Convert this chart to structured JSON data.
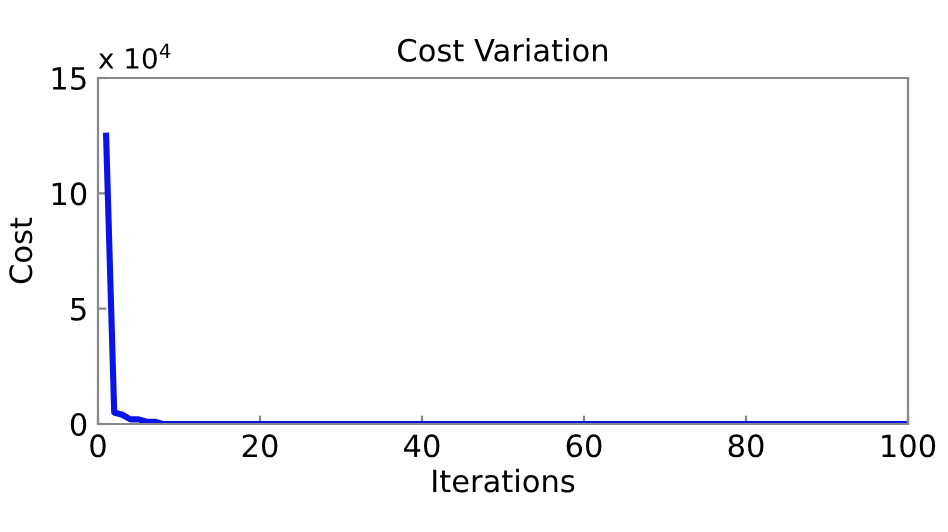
{
  "chart_data": {
    "type": "line",
    "title": "Cost Variation",
    "xlabel": "Iterations",
    "ylabel": "Cost",
    "x": [
      1,
      2,
      3,
      4,
      5,
      6,
      7,
      8,
      10,
      20,
      40,
      60,
      80,
      100
    ],
    "series": [
      {
        "color": "#0a14e6",
        "values": [
          12.5,
          0.5,
          0.4,
          0.2,
          0.2,
          0.1,
          0.1,
          0,
          0,
          0,
          0,
          0,
          0,
          0
        ]
      }
    ],
    "xlim": [
      0,
      100
    ],
    "xticks": [
      0,
      20,
      40,
      60,
      80,
      100
    ],
    "ylim": [
      0,
      15
    ],
    "yticks": [
      0,
      5,
      10,
      15
    ],
    "annotations": [
      "x 10$^{4}$"
    ],
    "grid": false,
    "legend": false,
    "marker": "none",
    "line_style": "solid"
  }
}
